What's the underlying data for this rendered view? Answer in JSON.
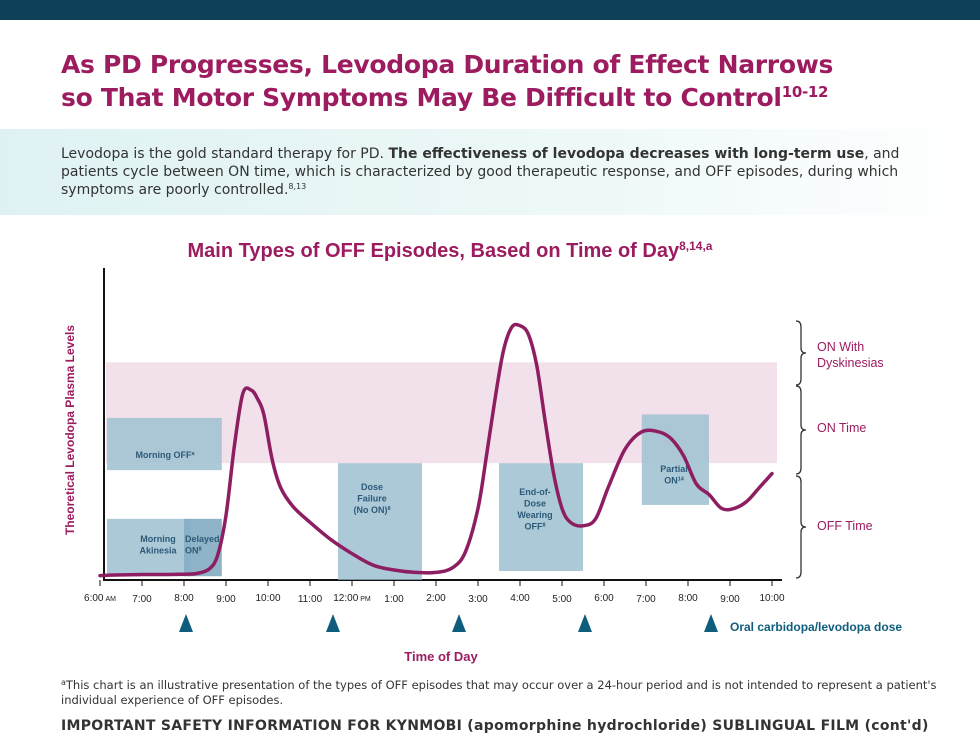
{
  "header": {
    "headline_line1": "As PD Progresses, Levodopa Duration of Effect Narrows",
    "headline_line2": "so That Motor Symptoms May Be Difficult to Control",
    "headline_refs": "10-12"
  },
  "intro": {
    "part1": "Levodopa is the gold standard therapy for PD. ",
    "bold": "The effectiveness of levodopa decreases with long-term use",
    "part2": ", and patients cycle between ON time, which is characterized by good therapeutic response, and OFF episodes, during which symptoms are poorly controlled.",
    "refs": "8,13"
  },
  "chart_data": {
    "type": "line",
    "title": "Main Types of OFF Episodes, Based on Time of Day",
    "title_refs": "8,14,a",
    "ylabel": "Theoretical Levodopa Plasma Levels",
    "xlabel": "Time of Day",
    "x_range": [
      6,
      22
    ],
    "y_range": [
      0,
      100
    ],
    "x_ticks": [
      {
        "x": 6,
        "label": "6:00",
        "suffix": "AM"
      },
      {
        "x": 7,
        "label": "7:00"
      },
      {
        "x": 8,
        "label": "8:00"
      },
      {
        "x": 9,
        "label": "9:00"
      },
      {
        "x": 10,
        "label": "10:00"
      },
      {
        "x": 11,
        "label": "11:00"
      },
      {
        "x": 12,
        "label": "12:00",
        "suffix": "PM"
      },
      {
        "x": 13,
        "label": "1:00"
      },
      {
        "x": 14,
        "label": "2:00"
      },
      {
        "x": 15,
        "label": "3:00"
      },
      {
        "x": 16,
        "label": "4:00"
      },
      {
        "x": 17,
        "label": "5:00"
      },
      {
        "x": 18,
        "label": "6:00"
      },
      {
        "x": 19,
        "label": "7:00"
      },
      {
        "x": 20,
        "label": "8:00"
      },
      {
        "x": 21,
        "label": "9:00"
      },
      {
        "x": 22,
        "label": "10:00"
      }
    ],
    "on_time_band": [
      33,
      62
    ],
    "series": [
      {
        "x": [
          6.0,
          6.5,
          7.0,
          7.5,
          8.0,
          8.3,
          8.6,
          8.8,
          9.0,
          9.2,
          9.4,
          9.6,
          9.75,
          9.9,
          10.1,
          10.3,
          10.6,
          11.0,
          11.5,
          12.0,
          12.5,
          13.0,
          13.5,
          14.0,
          14.4,
          14.7,
          15.0,
          15.2,
          15.4,
          15.6,
          15.8,
          16.0,
          16.2,
          16.4,
          16.6,
          16.8,
          17.0,
          17.2,
          17.5,
          17.8,
          18.1,
          18.5,
          18.9,
          19.3,
          19.6,
          19.9,
          20.2,
          20.5,
          20.8,
          21.1,
          21.4,
          21.7,
          22.0
        ],
        "y": [
          0.7,
          0.9,
          1.0,
          1.0,
          1.1,
          1.3,
          2.6,
          6.5,
          18.0,
          38.0,
          53.0,
          54.0,
          51.5,
          47.0,
          34.0,
          26.0,
          20.5,
          16.0,
          11.0,
          7.0,
          3.7,
          2.3,
          1.6,
          1.6,
          3.0,
          7.5,
          20.0,
          35.0,
          51.0,
          65.0,
          72.0,
          72.5,
          70.0,
          61.0,
          45.0,
          30.0,
          20.0,
          16.0,
          15.0,
          17.0,
          26.0,
          37.0,
          42.0,
          42.0,
          40.0,
          35.0,
          27.0,
          24.0,
          20.0,
          20.0,
          22.0,
          26.0,
          30.0
        ]
      }
    ],
    "episode_boxes": [
      {
        "label": "Morning OFF",
        "ref": "a",
        "x": [
          6.0,
          8.9
        ],
        "y": [
          31,
          46
        ]
      },
      {
        "label": "Morning Akinesia",
        "ref": "",
        "x": [
          6.0,
          8.0
        ],
        "y": [
          0.5,
          17
        ]
      },
      {
        "label": "Delayed ON",
        "ref": "8",
        "x": [
          8.0,
          8.9
        ],
        "y": [
          0.5,
          17
        ]
      },
      {
        "label": "Dose Failure (No ON)",
        "ref": "8",
        "x": [
          11.5,
          13.5
        ],
        "y": [
          -0.5,
          33
        ]
      },
      {
        "label": "End-of-Dose Wearing OFF",
        "ref": "8",
        "x": [
          15.5,
          17.5
        ],
        "y": [
          2,
          33
        ]
      },
      {
        "label": "Partial ON",
        "ref": "14",
        "x": [
          18.9,
          20.5
        ],
        "y": [
          21,
          47
        ]
      }
    ],
    "dose_marks": [
      8,
      11.5,
      14.5,
      17.5,
      20.5
    ],
    "dose_label": "Oral carbidopa/levodopa dose",
    "zones": [
      {
        "label": "ON With Dyskinesias",
        "y": [
          62,
          83
        ]
      },
      {
        "label": "ON Time",
        "y": [
          33,
          62
        ]
      },
      {
        "label": "OFF Time",
        "y": [
          0,
          33
        ]
      }
    ],
    "colors": {
      "curve": "#8e1e62",
      "box_fill": "#a5c4d4",
      "box_fill_dark": "#86aec2",
      "box_text": "#2c5a78",
      "band": "#f2e0ea",
      "dose_marker": "#0f5d7d",
      "title": "#9c1c5f"
    }
  },
  "footnote": {
    "marker": "a",
    "text": "This chart is an illustrative presentation of the types of OFF episodes that may occur over a 24-hour period and is not intended to represent a patient's individual experience of OFF episodes."
  },
  "isi": {
    "heading": "IMPORTANT SAFETY INFORMATION FOR KYNMOBI (apomorphine hydrochloride) SUBLINGUAL FILM (cont'd)"
  }
}
